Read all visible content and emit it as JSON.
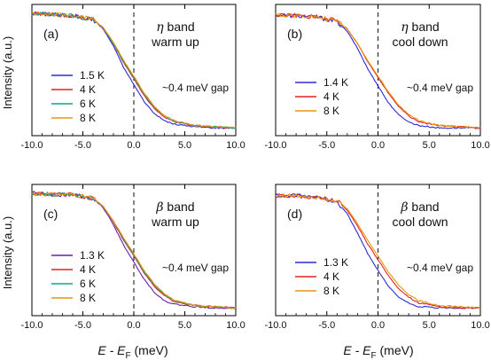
{
  "shared": {
    "ylabel": "Intensity (a.u.)",
    "xlabel_main": "E - E",
    "xlabel_sub": "F",
    "xlabel_unit": " (meV)",
    "xticks": [
      "-10.0",
      "-5.0",
      "0.0",
      "5.0",
      "10.0"
    ]
  },
  "colors": {
    "blue": "#2b2bd6",
    "red": "#e32222",
    "green": "#14a38c",
    "orange": "#e8950e",
    "purple": "#6a1fa8",
    "axis": "#000000"
  },
  "chart_data": [
    {
      "type": "line",
      "panel": "(a)",
      "band_symbol": "η",
      "band_word": "band",
      "mode": "warm up",
      "gap_note": "~0.4 meV gap",
      "xlim": [
        -10,
        10
      ],
      "xticks": [
        -10,
        -5,
        0,
        5,
        10
      ],
      "ylim": [
        0,
        1
      ],
      "series": [
        {
          "name": "1.5 K",
          "color": "#2b2bd6",
          "x": [
            -10,
            -8,
            -6,
            -4,
            -3,
            -2,
            -1,
            0,
            1,
            2,
            3,
            4,
            6,
            8,
            10
          ],
          "y": [
            0.97,
            0.96,
            0.95,
            0.92,
            0.84,
            0.7,
            0.52,
            0.38,
            0.24,
            0.14,
            0.08,
            0.05,
            0.03,
            0.02,
            0.02
          ]
        },
        {
          "name": "4 K",
          "color": "#e32222",
          "x": [
            -10,
            -8,
            -6,
            -4,
            -3,
            -2,
            -1,
            0,
            1,
            2,
            3,
            4,
            6,
            8,
            10
          ],
          "y": [
            0.97,
            0.96,
            0.95,
            0.92,
            0.85,
            0.72,
            0.56,
            0.43,
            0.29,
            0.18,
            0.11,
            0.07,
            0.04,
            0.03,
            0.02
          ]
        },
        {
          "name": "6 K",
          "color": "#14a38c",
          "x": [
            -10,
            -8,
            -6,
            -4,
            -3,
            -2,
            -1,
            0,
            1,
            2,
            3,
            4,
            6,
            8,
            10
          ],
          "y": [
            0.97,
            0.96,
            0.95,
            0.92,
            0.85,
            0.72,
            0.57,
            0.44,
            0.3,
            0.19,
            0.12,
            0.07,
            0.04,
            0.03,
            0.02
          ]
        },
        {
          "name": "8 K",
          "color": "#e8950e",
          "x": [
            -10,
            -8,
            -6,
            -4,
            -3,
            -2,
            -1,
            0,
            1,
            2,
            3,
            4,
            6,
            8,
            10
          ],
          "y": [
            0.97,
            0.96,
            0.95,
            0.92,
            0.85,
            0.73,
            0.58,
            0.45,
            0.31,
            0.2,
            0.12,
            0.08,
            0.04,
            0.03,
            0.02
          ]
        }
      ]
    },
    {
      "type": "line",
      "panel": "(b)",
      "band_symbol": "η",
      "band_word": "band",
      "mode": "cool down",
      "gap_note": "~0.4 meV gap",
      "xlim": [
        -10,
        10
      ],
      "xticks": [
        -10,
        -5,
        0,
        5,
        10
      ],
      "ylim": [
        0,
        1
      ],
      "series": [
        {
          "name": "1.4 K",
          "color": "#2b2bd6",
          "x": [
            -10,
            -8,
            -6,
            -4,
            -3,
            -2,
            -1,
            0,
            1,
            2,
            3,
            4,
            6,
            8,
            10
          ],
          "y": [
            0.96,
            0.95,
            0.94,
            0.9,
            0.82,
            0.68,
            0.51,
            0.37,
            0.23,
            0.13,
            0.07,
            0.04,
            0.02,
            0.02,
            0.02
          ]
        },
        {
          "name": "4 K",
          "color": "#e32222",
          "x": [
            -10,
            -8,
            -6,
            -4,
            -3,
            -2,
            -1,
            0,
            1,
            2,
            3,
            4,
            6,
            8,
            10
          ],
          "y": [
            0.96,
            0.95,
            0.94,
            0.91,
            0.84,
            0.72,
            0.57,
            0.44,
            0.31,
            0.2,
            0.12,
            0.07,
            0.04,
            0.03,
            0.02
          ]
        },
        {
          "name": "8 K",
          "color": "#e8950e",
          "x": [
            -10,
            -8,
            -6,
            -4,
            -3,
            -2,
            -1,
            0,
            1,
            2,
            3,
            4,
            6,
            8,
            10
          ],
          "y": [
            0.96,
            0.95,
            0.94,
            0.91,
            0.84,
            0.72,
            0.58,
            0.45,
            0.32,
            0.21,
            0.13,
            0.08,
            0.04,
            0.03,
            0.02
          ]
        }
      ]
    },
    {
      "type": "line",
      "panel": "(c)",
      "band_symbol": "β",
      "band_word": "band",
      "mode": "warm up",
      "gap_note": "~0.4 meV gap",
      "xlim": [
        -10,
        10
      ],
      "xticks": [
        -10,
        -5,
        0,
        5,
        10
      ],
      "ylim": [
        0,
        1
      ],
      "series": [
        {
          "name": "1.3 K",
          "color": "#6a1fa8",
          "x": [
            -10,
            -8,
            -6,
            -4,
            -3,
            -2,
            -1,
            0,
            1,
            2,
            3,
            4,
            6,
            8,
            10
          ],
          "y": [
            0.97,
            0.96,
            0.96,
            0.93,
            0.85,
            0.71,
            0.54,
            0.4,
            0.26,
            0.15,
            0.08,
            0.05,
            0.03,
            0.02,
            0.02
          ]
        },
        {
          "name": "4 K",
          "color": "#e32222",
          "x": [
            -10,
            -8,
            -6,
            -4,
            -3,
            -2,
            -1,
            0,
            1,
            2,
            3,
            4,
            6,
            8,
            10
          ],
          "y": [
            0.97,
            0.96,
            0.96,
            0.93,
            0.86,
            0.73,
            0.58,
            0.45,
            0.31,
            0.2,
            0.12,
            0.07,
            0.04,
            0.03,
            0.02
          ]
        },
        {
          "name": "6 K",
          "color": "#14a38c",
          "x": [
            -10,
            -8,
            -6,
            -4,
            -3,
            -2,
            -1,
            0,
            1,
            2,
            3,
            4,
            6,
            8,
            10
          ],
          "y": [
            0.97,
            0.96,
            0.96,
            0.93,
            0.86,
            0.74,
            0.59,
            0.46,
            0.32,
            0.21,
            0.13,
            0.08,
            0.04,
            0.03,
            0.02
          ]
        },
        {
          "name": "8 K",
          "color": "#e8950e",
          "x": [
            -10,
            -8,
            -6,
            -4,
            -3,
            -2,
            -1,
            0,
            1,
            2,
            3,
            4,
            6,
            8,
            10
          ],
          "y": [
            0.97,
            0.96,
            0.96,
            0.93,
            0.86,
            0.74,
            0.6,
            0.47,
            0.33,
            0.22,
            0.14,
            0.08,
            0.04,
            0.03,
            0.02
          ]
        }
      ]
    },
    {
      "type": "line",
      "panel": "(d)",
      "band_symbol": "β",
      "band_word": "band",
      "mode": "cool down",
      "gap_note": "~0.4 meV gap",
      "xlim": [
        -10,
        10
      ],
      "xticks": [
        -10,
        -5,
        0,
        5,
        10
      ],
      "ylim": [
        0,
        1
      ],
      "series": [
        {
          "name": "1.3 K",
          "color": "#2b2bd6",
          "x": [
            -10,
            -8,
            -6,
            -4,
            -3,
            -2,
            -1,
            0,
            1,
            2,
            3,
            4,
            6,
            8,
            10
          ],
          "y": [
            0.95,
            0.95,
            0.94,
            0.9,
            0.8,
            0.64,
            0.47,
            0.33,
            0.2,
            0.11,
            0.06,
            0.03,
            0.02,
            0.02,
            0.02
          ]
        },
        {
          "name": "4 K",
          "color": "#e32222",
          "x": [
            -10,
            -8,
            -6,
            -4,
            -3,
            -2,
            -1,
            0,
            1,
            2,
            3,
            4,
            6,
            8,
            10
          ],
          "y": [
            0.95,
            0.95,
            0.94,
            0.91,
            0.83,
            0.7,
            0.55,
            0.42,
            0.29,
            0.18,
            0.11,
            0.06,
            0.03,
            0.02,
            0.02
          ]
        },
        {
          "name": "8 K",
          "color": "#e8950e",
          "x": [
            -10,
            -8,
            -6,
            -4,
            -3,
            -2,
            -1,
            0,
            1,
            2,
            3,
            4,
            6,
            8,
            10
          ],
          "y": [
            0.95,
            0.95,
            0.94,
            0.91,
            0.84,
            0.72,
            0.58,
            0.45,
            0.32,
            0.21,
            0.13,
            0.08,
            0.04,
            0.03,
            0.02
          ]
        }
      ]
    }
  ]
}
